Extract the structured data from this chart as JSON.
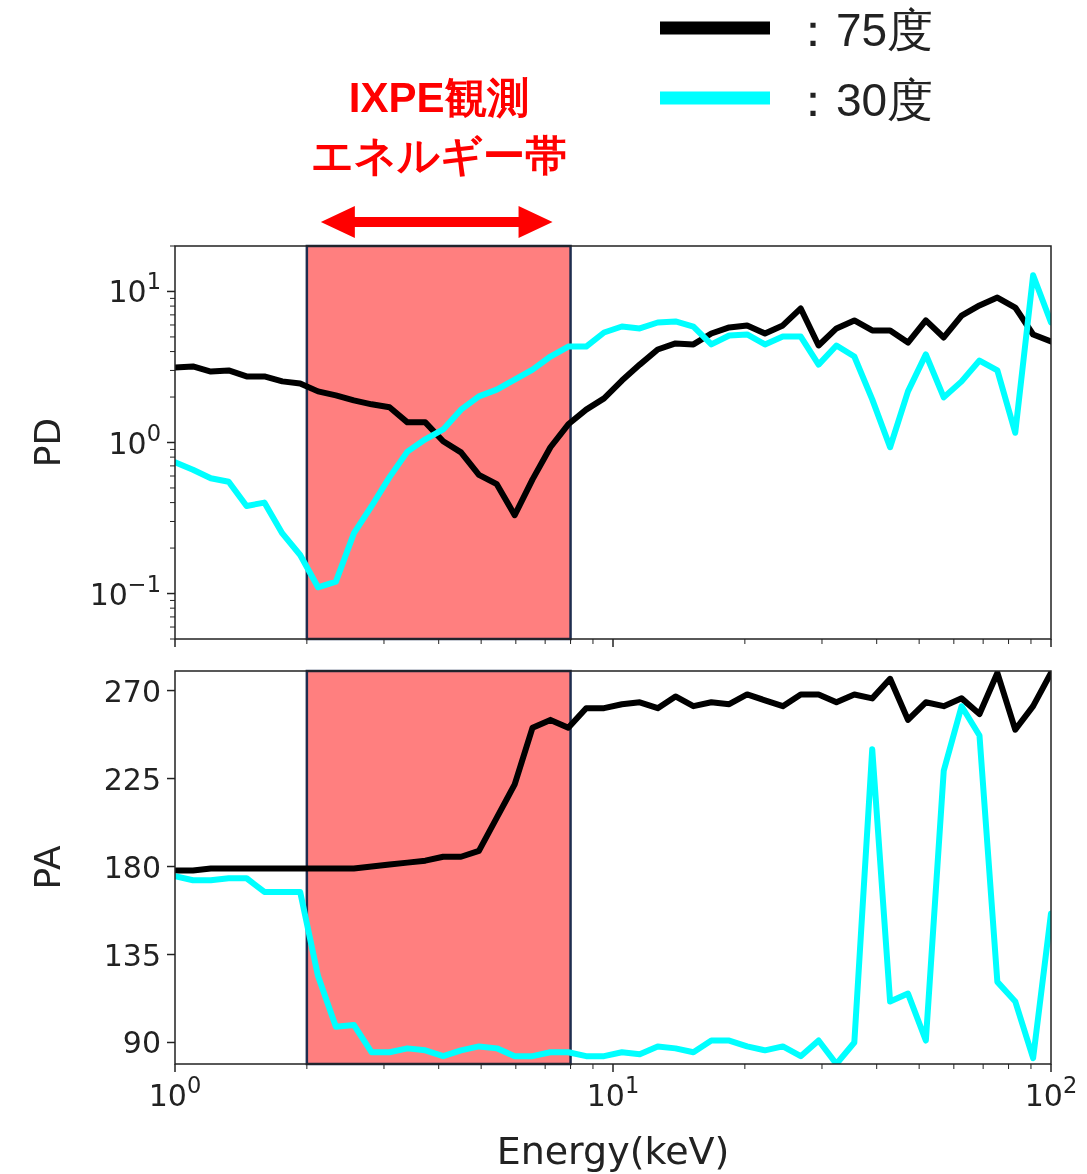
{
  "chart_data": [
    {
      "type": "line",
      "ylabel": "PD",
      "log": "xy",
      "xlim": [
        1,
        100
      ],
      "ylim": [
        0.05,
        20
      ],
      "tick_labels": "y",
      "legend": "top right",
      "xticks": [
        1,
        10,
        100
      ],
      "yticks": [
        {
          "value": 0.1,
          "label": "10$^{−1}$"
        },
        {
          "value": 1,
          "label": "10$^{0}$"
        },
        {
          "value": 10,
          "label": "10$^{1}$"
        }
      ],
      "x": [
        1,
        1.099,
        1.207,
        1.326,
        1.457,
        1.6,
        1.758,
        1.931,
        2.121,
        2.33,
        2.56,
        2.812,
        3.089,
        3.393,
        3.728,
        4.095,
        4.498,
        4.942,
        5.429,
        5.964,
        6.551,
        7.197,
        7.906,
        8.685,
        9.541,
        10.48,
        11.51,
        12.65,
        13.89,
        15.26,
        16.77,
        18.42,
        20.24,
        22.23,
        24.42,
        26.83,
        29.47,
        32.37,
        35.56,
        39.07,
        42.92,
        47.15,
        51.79,
        56.9,
        62.5,
        68.66,
        75.43,
        82.86,
        91.03,
        100
      ],
      "series": [
        {
          "name": "：75度",
          "color": "#000000",
          "values": [
            3.14,
            3.19,
            2.95,
            3.0,
            2.74,
            2.74,
            2.54,
            2.46,
            2.18,
            2.05,
            1.9,
            1.79,
            1.71,
            1.36,
            1.36,
            1.02,
            0.86,
            0.61,
            0.53,
            0.33,
            0.57,
            0.93,
            1.32,
            1.65,
            1.96,
            2.57,
            3.28,
            4.13,
            4.53,
            4.46,
            5.27,
            5.78,
            5.96,
            5.27,
            5.96,
            7.72,
            4.39,
            5.69,
            6.43,
            5.52,
            5.52,
            4.59,
            6.43,
            4.96,
            6.93,
            8.08,
            9.12,
            7.83,
            5.19,
            4.67
          ]
        },
        {
          "name": "：30度",
          "color": "#00ffff",
          "values": [
            0.74,
            0.66,
            0.58,
            0.55,
            0.38,
            0.4,
            0.25,
            0.18,
            0.11,
            0.12,
            0.25,
            0.38,
            0.59,
            0.87,
            1.05,
            1.22,
            1.65,
            2.02,
            2.24,
            2.61,
            3.04,
            3.71,
            4.32,
            4.32,
            5.35,
            5.86,
            5.69,
            6.23,
            6.33,
            5.86,
            4.46,
            5.11,
            5.19,
            4.46,
            5.03,
            5.03,
            3.28,
            4.39,
            3.71,
            1.93,
            0.93,
            2.18,
            3.83,
            1.99,
            2.54,
            3.49,
            3.0,
            1.16,
            12.8,
            6.23
          ]
        }
      ],
      "bands": [
        {
          "axis": "x",
          "from": 2,
          "to": 8,
          "label": "IXPE観測エネルギー帯",
          "color": "#ff0000"
        }
      ]
    },
    {
      "type": "line",
      "ylabel": "PA",
      "xlabel": "Energy(keV)",
      "log": "x",
      "xlim": [
        1,
        100
      ],
      "ylim": [
        79,
        280
      ],
      "xticks": [
        {
          "value": 1,
          "label": "10$^{0}$"
        },
        {
          "value": 10,
          "label": "10$^{1}$"
        },
        {
          "value": 100,
          "label": "10$^{2}$"
        }
      ],
      "yticks": [
        90,
        135,
        180,
        225,
        270
      ],
      "x": [
        1,
        1.099,
        1.207,
        1.326,
        1.457,
        1.6,
        1.758,
        1.931,
        2.121,
        2.33,
        2.56,
        2.812,
        3.089,
        3.393,
        3.728,
        4.095,
        4.498,
        4.942,
        5.429,
        5.964,
        6.551,
        7.197,
        7.906,
        8.685,
        9.541,
        10.48,
        11.51,
        12.65,
        13.89,
        15.26,
        16.77,
        18.42,
        20.24,
        22.23,
        24.42,
        26.83,
        29.47,
        32.37,
        35.56,
        39.07,
        42.92,
        47.15,
        51.79,
        56.9,
        62.5,
        68.66,
        75.43,
        82.86,
        91.03,
        100
      ],
      "series": [
        {
          "color": "#000000",
          "values": [
            178,
            178,
            179,
            179,
            179,
            179,
            179,
            179,
            179,
            179,
            179,
            180,
            181,
            182,
            183,
            185,
            185,
            188,
            205,
            222,
            251,
            255,
            251,
            261,
            261,
            263,
            264,
            261,
            267,
            262,
            264,
            263,
            268,
            265,
            262,
            268,
            268,
            264,
            268,
            266,
            276,
            255,
            264,
            262,
            266,
            258,
            279,
            250,
            262,
            279
          ]
        },
        {
          "color": "#00ffff",
          "values": [
            175,
            173,
            173,
            174,
            174,
            167,
            167,
            167,
            124,
            98,
            99,
            85,
            85,
            87,
            86,
            83,
            86,
            88,
            87,
            83,
            83,
            85,
            85,
            83,
            83,
            85,
            84,
            88,
            87,
            85,
            91,
            91,
            88,
            86,
            88,
            83,
            91,
            79,
            90,
            240,
            111,
            115,
            91,
            229,
            262,
            247,
            121,
            111,
            82,
            156
          ]
        }
      ],
      "bands": [
        {
          "axis": "x",
          "from": 2,
          "to": 8,
          "color": "#ff0000"
        }
      ]
    }
  ]
}
